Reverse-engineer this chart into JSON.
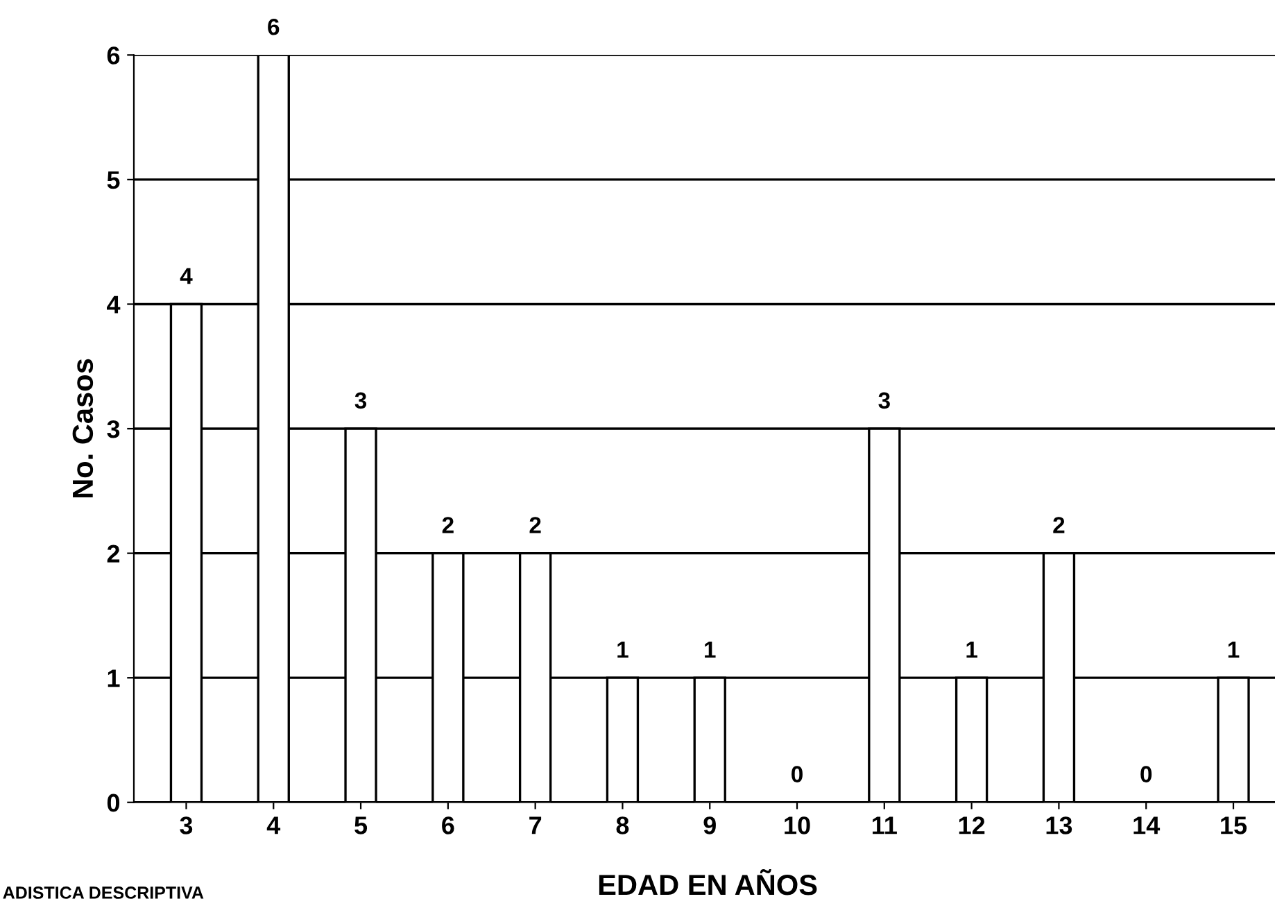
{
  "chart_data": {
    "type": "bar",
    "xlabel": "EDAD EN AÑOS",
    "ylabel": "No. Casos",
    "categories": [
      "3",
      "4",
      "5",
      "6",
      "7",
      "8",
      "9",
      "10",
      "11",
      "12",
      "13",
      "14",
      "15"
    ],
    "values": [
      4,
      6,
      3,
      2,
      2,
      1,
      1,
      0,
      3,
      1,
      2,
      0,
      1
    ],
    "color": "#ffffff",
    "ylim": [
      0,
      6
    ],
    "yticks": [
      0,
      1,
      2,
      3,
      4,
      5,
      6
    ],
    "grid": "y",
    "data_labels": true,
    "annotations": [
      "ADISTICA DESCRIPTIVA"
    ]
  }
}
